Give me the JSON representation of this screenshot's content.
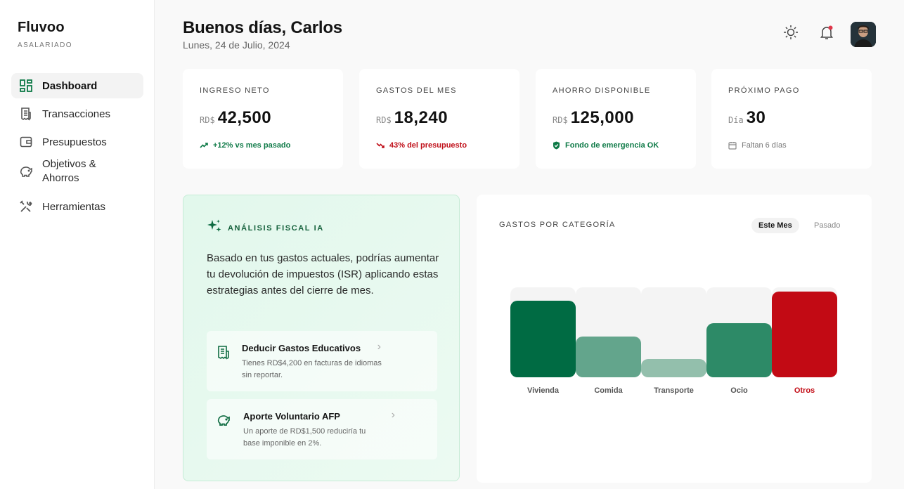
{
  "app": {
    "name": "Fluvoo",
    "role": "ASALARIADO"
  },
  "nav": [
    {
      "label": "Dashboard",
      "icon": "dashboard-icon",
      "active": true
    },
    {
      "label": "Transacciones",
      "icon": "receipt-icon"
    },
    {
      "label": "Presupuestos",
      "icon": "wallet-icon"
    },
    {
      "label": "Objetivos & Ahorros",
      "icon": "piggy-bank-icon"
    },
    {
      "label": "Herramientas",
      "icon": "tools-icon"
    }
  ],
  "header": {
    "greeting": "Buenos días, Carlos",
    "date": "Lunes, 24 de Julio, 2024"
  },
  "cards": [
    {
      "label": "INGRESO NETO",
      "currency": "RD$",
      "value": "42,500",
      "note": "+12% vs mes pasado",
      "note_icon": "trend-up-icon",
      "tone": "green"
    },
    {
      "label": "GASTOS DEL MES",
      "currency": "RD$",
      "value": "18,240",
      "note": "43% del presupuesto",
      "note_icon": "trend-down-icon",
      "tone": "red"
    },
    {
      "label": "AHORRO DISPONIBLE",
      "currency": "RD$",
      "value": "125,000",
      "note": "Fondo de emergencia OK",
      "note_icon": "shield-check-icon",
      "tone": "green"
    },
    {
      "label": "PRÓXIMO PAGO",
      "currency": "Día",
      "value": "30",
      "note": "Faltan 6 días",
      "note_icon": "calendar-icon",
      "tone": "grey"
    }
  ],
  "fiscal": {
    "title": "ANÁLISIS FISCAL IA",
    "text": "Basado en tus gastos actuales, podrías aumentar tu devolución de impuestos (ISR) aplicando estas estrategias antes del cierre de mes.",
    "tips": [
      {
        "title": "Deducir Gastos Educativos",
        "desc": "Tienes RD$4,200 en facturas de idiomas sin reportar."
      },
      {
        "title": "Aporte Voluntario AFP",
        "desc": "Un aporte de RD$1,500 reduciría tu base imponible en 2%."
      }
    ]
  },
  "chart_header": {
    "title": "GASTOS POR CATEGORÍA",
    "tab_on": "Este Mes",
    "tab_off": "Pasado"
  },
  "chart_data": {
    "type": "bar",
    "title": "GASTOS POR CATEGORÍA",
    "categories": [
      "Vivienda",
      "Comida",
      "Transporte",
      "Ocio",
      "Otros"
    ],
    "values": [
      85,
      45,
      20,
      60,
      95
    ],
    "ylim": [
      0,
      100
    ],
    "colors": [
      "#006b43",
      "#63a58c",
      "#93bfac",
      "#2d8a67",
      "#c20a14"
    ],
    "highlight": "Otros",
    "grid": false
  }
}
